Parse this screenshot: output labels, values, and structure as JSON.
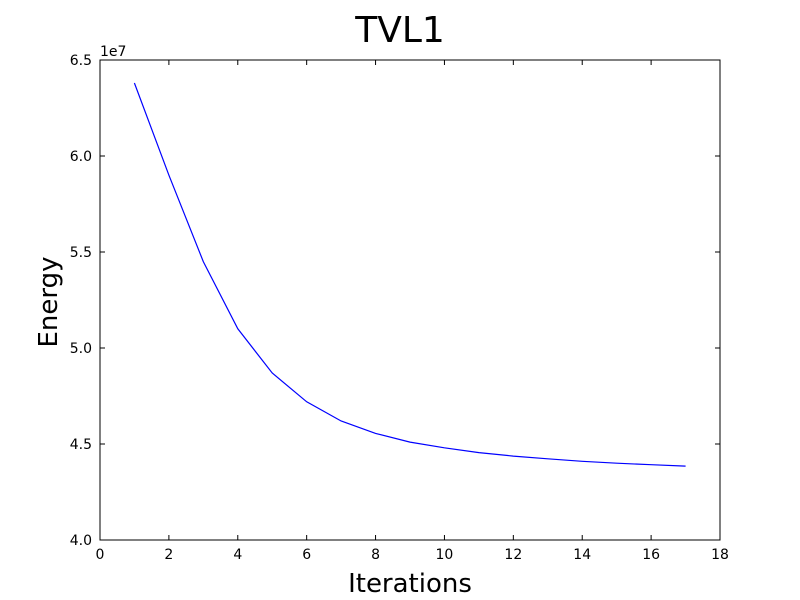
{
  "chart_data": {
    "type": "line",
    "title": "TVL1",
    "xlabel": "Iterations",
    "ylabel": "Energy",
    "y_offset_label": "1e7",
    "xlim": [
      0,
      18
    ],
    "ylim": [
      4.0,
      6.5
    ],
    "xticks": [
      0,
      2,
      4,
      6,
      8,
      10,
      12,
      14,
      16,
      18
    ],
    "xtick_labels": [
      "0",
      "2",
      "4",
      "6",
      "8",
      "10",
      "12",
      "14",
      "16",
      "18"
    ],
    "yticks": [
      4.0,
      4.5,
      5.0,
      5.5,
      6.0,
      6.5
    ],
    "ytick_labels": [
      "4.0",
      "4.5",
      "5.0",
      "5.5",
      "6.0",
      "6.5"
    ],
    "grid": false,
    "series": [
      {
        "color": "#0000ff",
        "x": [
          1,
          2,
          3,
          4,
          5,
          6,
          7,
          8,
          9,
          10,
          11,
          12,
          13,
          14,
          15,
          16,
          17
        ],
        "y": [
          6.38,
          5.9,
          5.45,
          5.1,
          4.87,
          4.72,
          4.62,
          4.555,
          4.51,
          4.48,
          4.455,
          4.437,
          4.423,
          4.41,
          4.4,
          4.392,
          4.385
        ]
      }
    ]
  }
}
